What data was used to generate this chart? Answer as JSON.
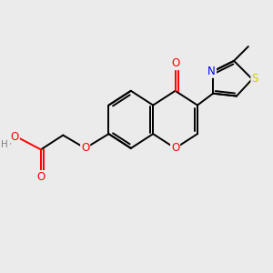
{
  "background_color": "#ebebeb",
  "bond_color": "#000000",
  "atom_colors": {
    "O": "#ff0000",
    "N": "#0000ff",
    "S": "#cccc00",
    "C": "#000000",
    "H": "#808080"
  },
  "figsize": [
    3.0,
    3.0
  ],
  "dpi": 100
}
